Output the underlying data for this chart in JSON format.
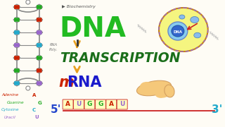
{
  "bg_color": "#fefcf5",
  "title_dna": "DNA",
  "title_transcription": "TRANSCRIPTION",
  "arrow_color": "#e8a020",
  "dna_color": "#22bb22",
  "transcription_color": "#1a6e1a",
  "mrna_m_color": "#cc2200",
  "mrna_rna_color": "#1a1acc",
  "legend_adenine": "Adenine",
  "legend_guanine": "Guanine",
  "legend_cytosine": "Cytosine",
  "legend_uracil": "Uracil",
  "legend_a_color": "#cc2200",
  "legend_g_color": "#22aa22",
  "legend_c_color": "#22aacc",
  "legend_u_color": "#9966cc",
  "five_prime": "5'",
  "three_prime": "3'",
  "codon_letters": [
    "A",
    "U",
    "G",
    "G",
    "A",
    "U"
  ],
  "codon_colors": [
    "#cc2200",
    "#9966cc",
    "#22aa22",
    "#22aa22",
    "#cc2200",
    "#9966cc"
  ],
  "codon_box_color": "#ffffc0",
  "codon_line_color": "#cc2222",
  "five_color": "#2244cc",
  "three_color": "#22aacc",
  "cell_fill": "#f5f580",
  "cell_border": "#cc8800",
  "cell_border2": "#9966cc",
  "nucleus_fill": "#88ccee",
  "nucleus_border": "#6688cc",
  "nucleus2_fill": "#3366cc",
  "dna_helix_color": "#888888",
  "helix_backbone_color": "#888888",
  "pancreas_color": "#f5c87a",
  "biochemistry_color": "#555555",
  "subtitle_arrow_color": "#e87820",
  "helix_colors_l": [
    "#cc2200",
    "#22aa22",
    "#22aacc",
    "#9966cc",
    "#cc2200",
    "#22aa22",
    "#22aacc",
    "#9966cc",
    "#cc2200"
  ],
  "helix_colors_r": [
    "#22aa22",
    "#cc2200",
    "#9966cc",
    "#22aacc",
    "#22aa22",
    "#cc2200",
    "#9966cc",
    "#22aacc",
    "#22aa22"
  ]
}
